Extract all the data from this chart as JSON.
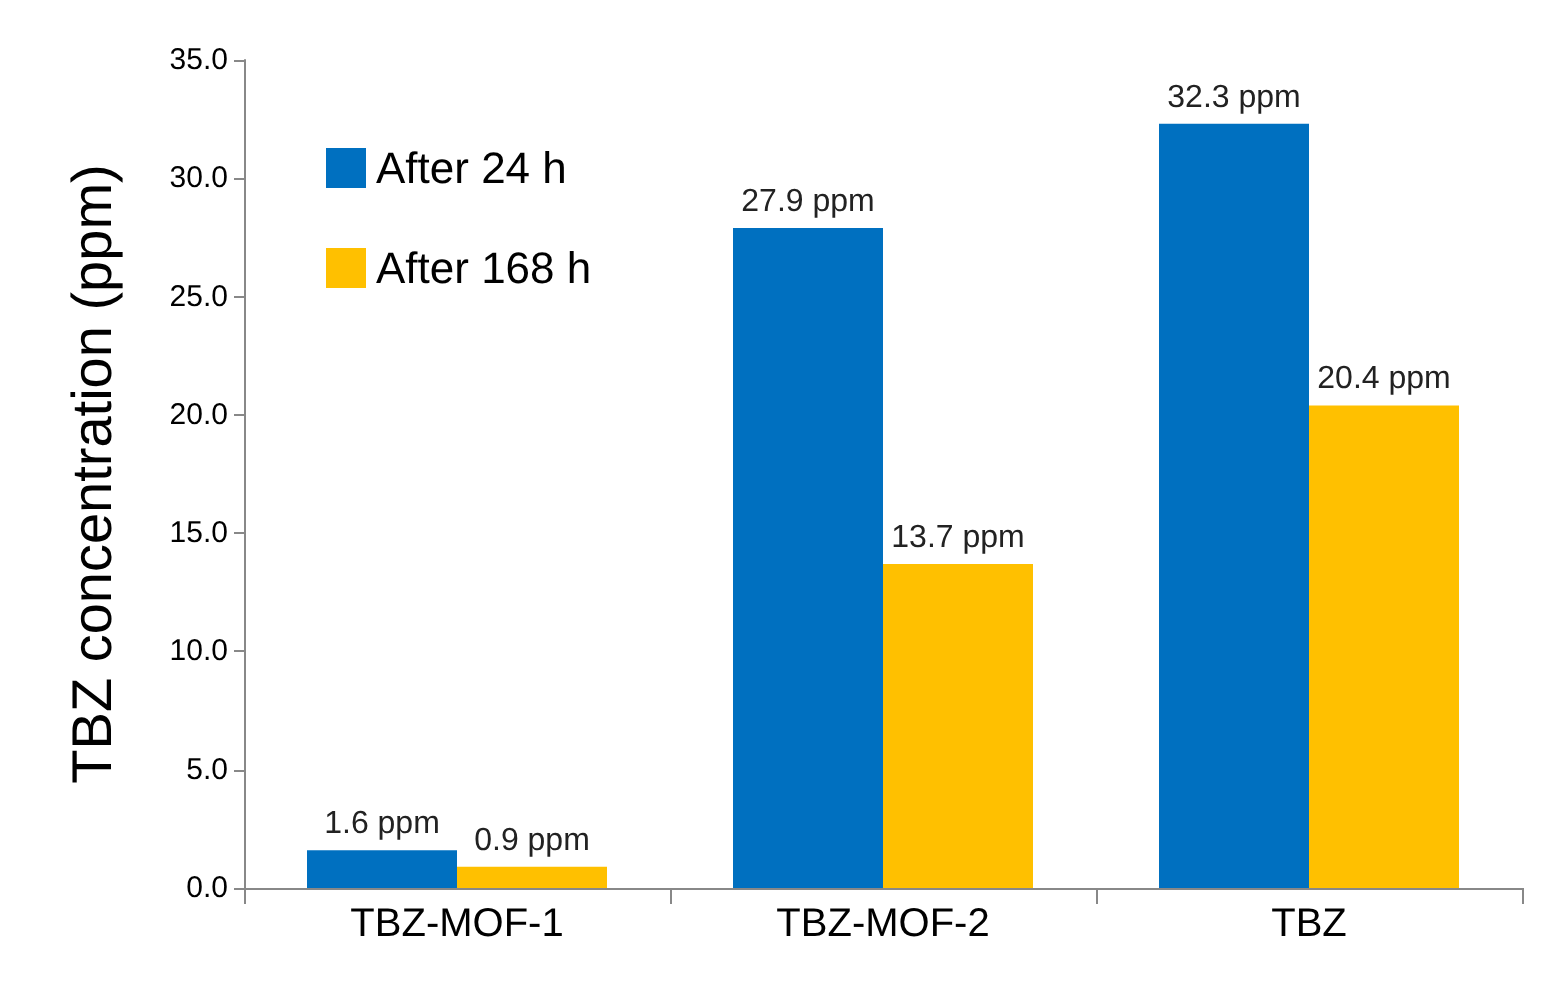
{
  "chart_data": {
    "type": "bar",
    "ylabel": "TBZ concentration (ppm)",
    "categories": [
      "TBZ-MOF-1",
      "TBZ-MOF-2",
      "TBZ"
    ],
    "series": [
      {
        "name": "After 24 h",
        "color": "#0070c0",
        "values": [
          1.6,
          27.9,
          32.3
        ],
        "value_labels": [
          "1.6 ppm",
          "27.9 ppm",
          "32.3 ppm"
        ]
      },
      {
        "name": "After 168 h",
        "color": "#ffc000",
        "values": [
          0.9,
          13.7,
          20.4
        ],
        "value_labels": [
          "0.9 ppm",
          "13.7 ppm",
          "20.4 ppm"
        ]
      }
    ],
    "ylim": [
      0,
      35
    ],
    "yticks": [
      {
        "value": 0,
        "label": "0.0"
      },
      {
        "value": 5,
        "label": "5.0"
      },
      {
        "value": 10,
        "label": "10.0"
      },
      {
        "value": 15,
        "label": "15.0"
      },
      {
        "value": 20,
        "label": "20.0"
      },
      {
        "value": 25,
        "label": "25.0"
      },
      {
        "value": 30,
        "label": "30.0"
      },
      {
        "value": 35,
        "label": "35.0"
      }
    ],
    "grid": false,
    "legend": "top left"
  }
}
